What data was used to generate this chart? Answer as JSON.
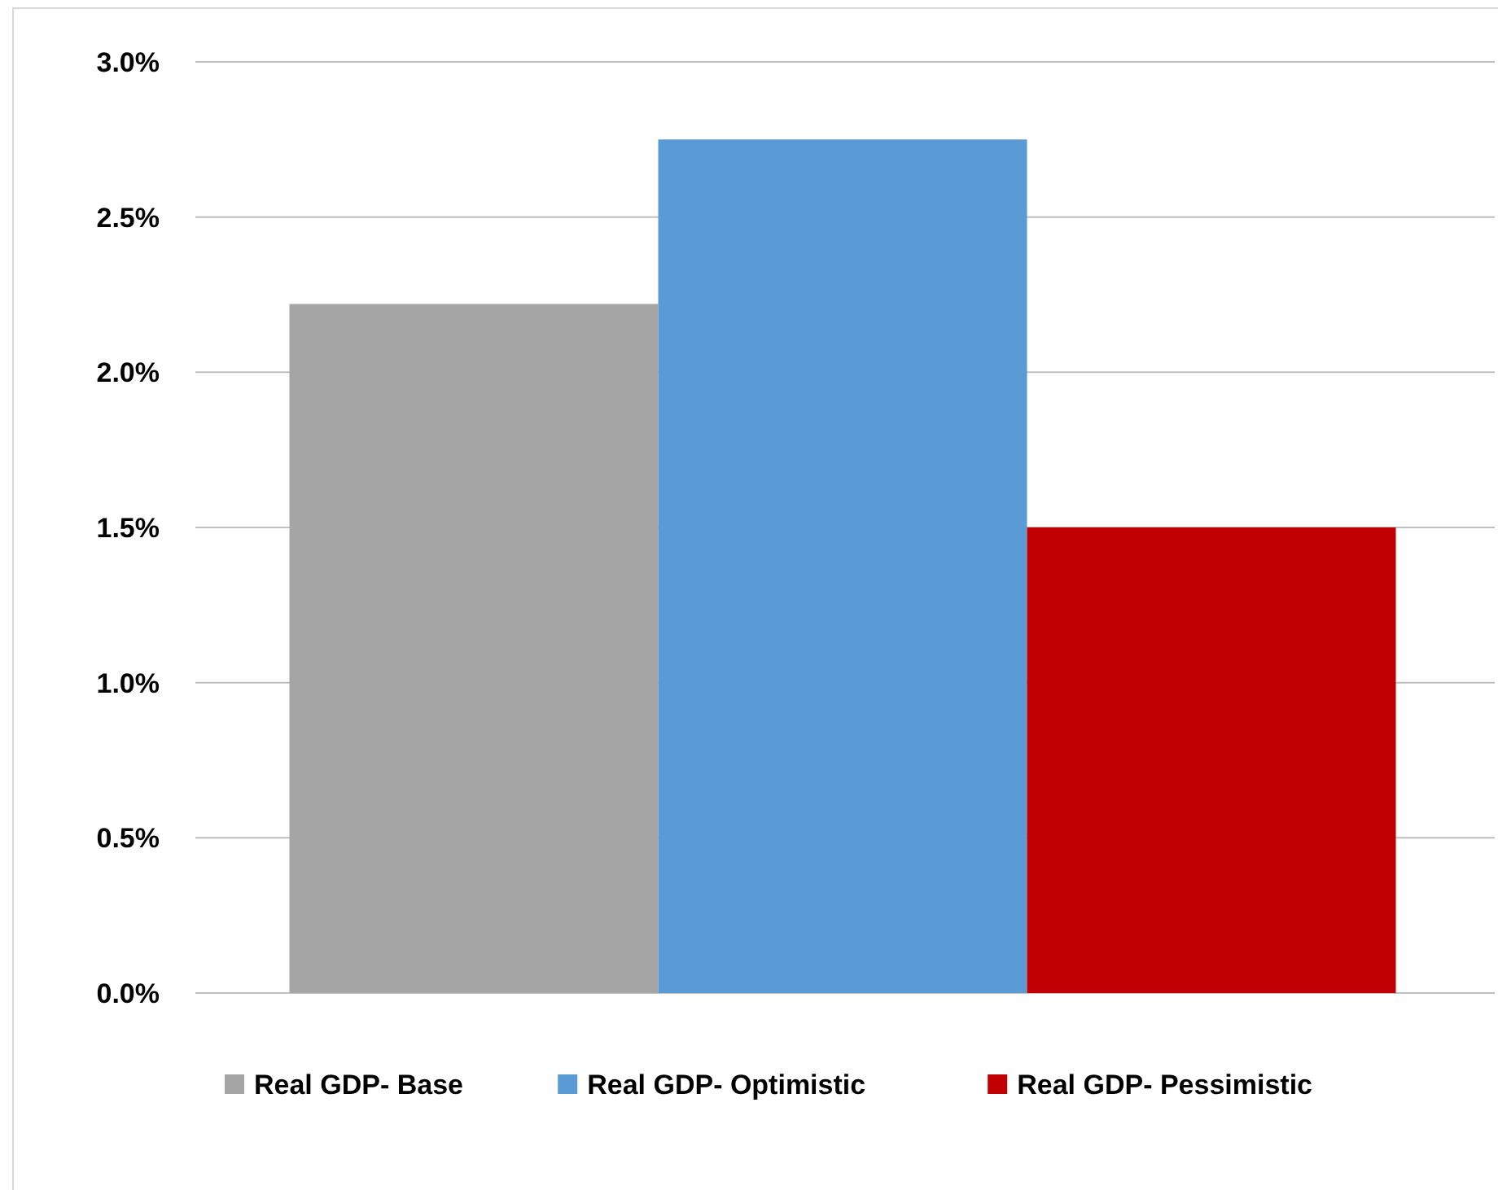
{
  "chart_data": {
    "type": "bar",
    "categories": [
      null
    ],
    "series": [
      {
        "name": "Real GDP- Base",
        "color": "#a5a5a5",
        "values": [
          2.22
        ]
      },
      {
        "name": "Real GDP- Optimistic",
        "color": "#5b9bd5",
        "values": [
          2.75
        ]
      },
      {
        "name": "Real GDP- Pessimistic",
        "color": "#c00000",
        "values": [
          1.5
        ]
      }
    ],
    "ylim": [
      0,
      3
    ],
    "yticks": [
      {
        "value": 0,
        "label": "0.0%"
      },
      {
        "value": 0.5,
        "label": "0.5%"
      },
      {
        "value": 1,
        "label": "1.0%"
      },
      {
        "value": 1.5,
        "label": "1.5%"
      },
      {
        "value": 2,
        "label": "2.0%"
      },
      {
        "value": 2.5,
        "label": "2.5%"
      },
      {
        "value": 3,
        "label": "3.0%"
      }
    ],
    "grid": "y",
    "legend": "bottom"
  }
}
